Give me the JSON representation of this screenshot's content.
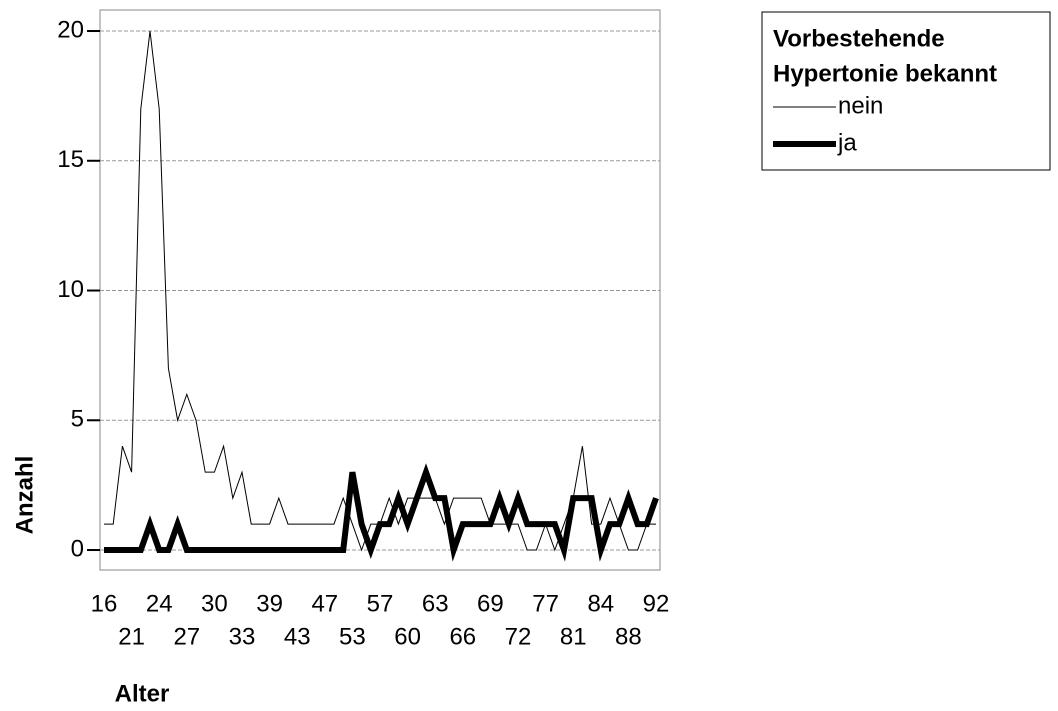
{
  "chart_data": {
    "type": "line",
    "x_label": "Alter",
    "y_label": "Anzahl",
    "legend_title": [
      "Vorbestehende",
      "Hypertonie bekannt"
    ],
    "legend_position": "outside-top-right",
    "categories": [
      "16",
      null,
      null,
      "21",
      null,
      null,
      "24",
      null,
      null,
      "27",
      null,
      null,
      "30",
      null,
      null,
      "33",
      null,
      null,
      "39",
      null,
      null,
      "43",
      null,
      null,
      "47",
      null,
      null,
      "53",
      null,
      null,
      "57",
      null,
      null,
      "60",
      null,
      null,
      "63",
      null,
      null,
      "66",
      null,
      null,
      "69",
      null,
      null,
      "72",
      null,
      null,
      "77",
      null,
      null,
      "81",
      null,
      null,
      "84",
      null,
      null,
      "88",
      null,
      null,
      "92"
    ],
    "series": [
      {
        "name": "nein",
        "color": "#000000",
        "width": 1,
        "values": [
          1,
          1,
          4,
          3,
          17,
          20,
          17,
          7,
          5,
          6,
          5,
          3,
          3,
          4,
          2,
          3,
          1,
          1,
          1,
          2,
          1,
          1,
          1,
          1,
          1,
          1,
          2,
          1,
          0,
          1,
          1,
          2,
          1,
          2,
          2,
          2,
          2,
          1,
          2,
          2,
          2,
          2,
          1,
          1,
          1,
          1,
          0,
          0,
          1,
          0,
          1,
          2,
          4,
          1,
          1,
          2,
          1,
          0,
          0,
          1,
          1
        ]
      },
      {
        "name": "ja",
        "color": "#000000",
        "width": 6,
        "values": [
          0,
          0,
          0,
          0,
          0,
          1,
          0,
          0,
          1,
          0,
          0,
          0,
          0,
          0,
          0,
          0,
          0,
          0,
          0,
          0,
          0,
          0,
          0,
          0,
          0,
          0,
          0,
          3,
          1,
          0,
          1,
          1,
          2,
          1,
          2,
          3,
          2,
          2,
          0,
          1,
          1,
          1,
          1,
          2,
          1,
          2,
          1,
          1,
          1,
          1,
          0,
          2,
          2,
          2,
          0,
          1,
          1,
          2,
          1,
          1,
          2
        ]
      }
    ],
    "ylim": [
      -0.77,
      20.81
    ],
    "yticks": [
      0,
      5,
      10,
      15,
      20
    ],
    "grid": true
  }
}
